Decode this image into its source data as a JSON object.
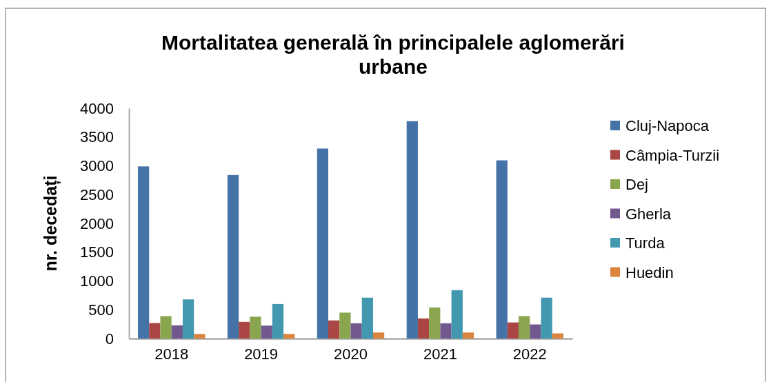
{
  "chart_data": {
    "type": "bar",
    "title": "Mortalitatea generală în principalele aglomerări urbane",
    "ylabel": "nr. decedați",
    "categories": [
      "2018",
      "2019",
      "2020",
      "2021",
      "2022"
    ],
    "series": [
      {
        "name": "Cluj-Napoca",
        "color": "#4572a7",
        "values": [
          2990,
          2840,
          3300,
          3775,
          3095
        ]
      },
      {
        "name": "Câmpia-Turzii",
        "color": "#aa4643",
        "values": [
          270,
          290,
          315,
          350,
          280
        ]
      },
      {
        "name": "Dej",
        "color": "#89a54e",
        "values": [
          390,
          380,
          450,
          540,
          390
        ]
      },
      {
        "name": "Gherla",
        "color": "#71588f",
        "values": [
          230,
          225,
          265,
          265,
          245
        ]
      },
      {
        "name": "Turda",
        "color": "#4198af",
        "values": [
          680,
          600,
          710,
          840,
          710
        ]
      },
      {
        "name": "Huedin",
        "color": "#db843d",
        "values": [
          80,
          80,
          105,
          105,
          90
        ]
      }
    ],
    "ylim": [
      0,
      4000
    ],
    "yticks": [
      0,
      500,
      1000,
      1500,
      2000,
      2500,
      3000,
      3500,
      4000
    ],
    "grid": false,
    "legend": "right"
  }
}
